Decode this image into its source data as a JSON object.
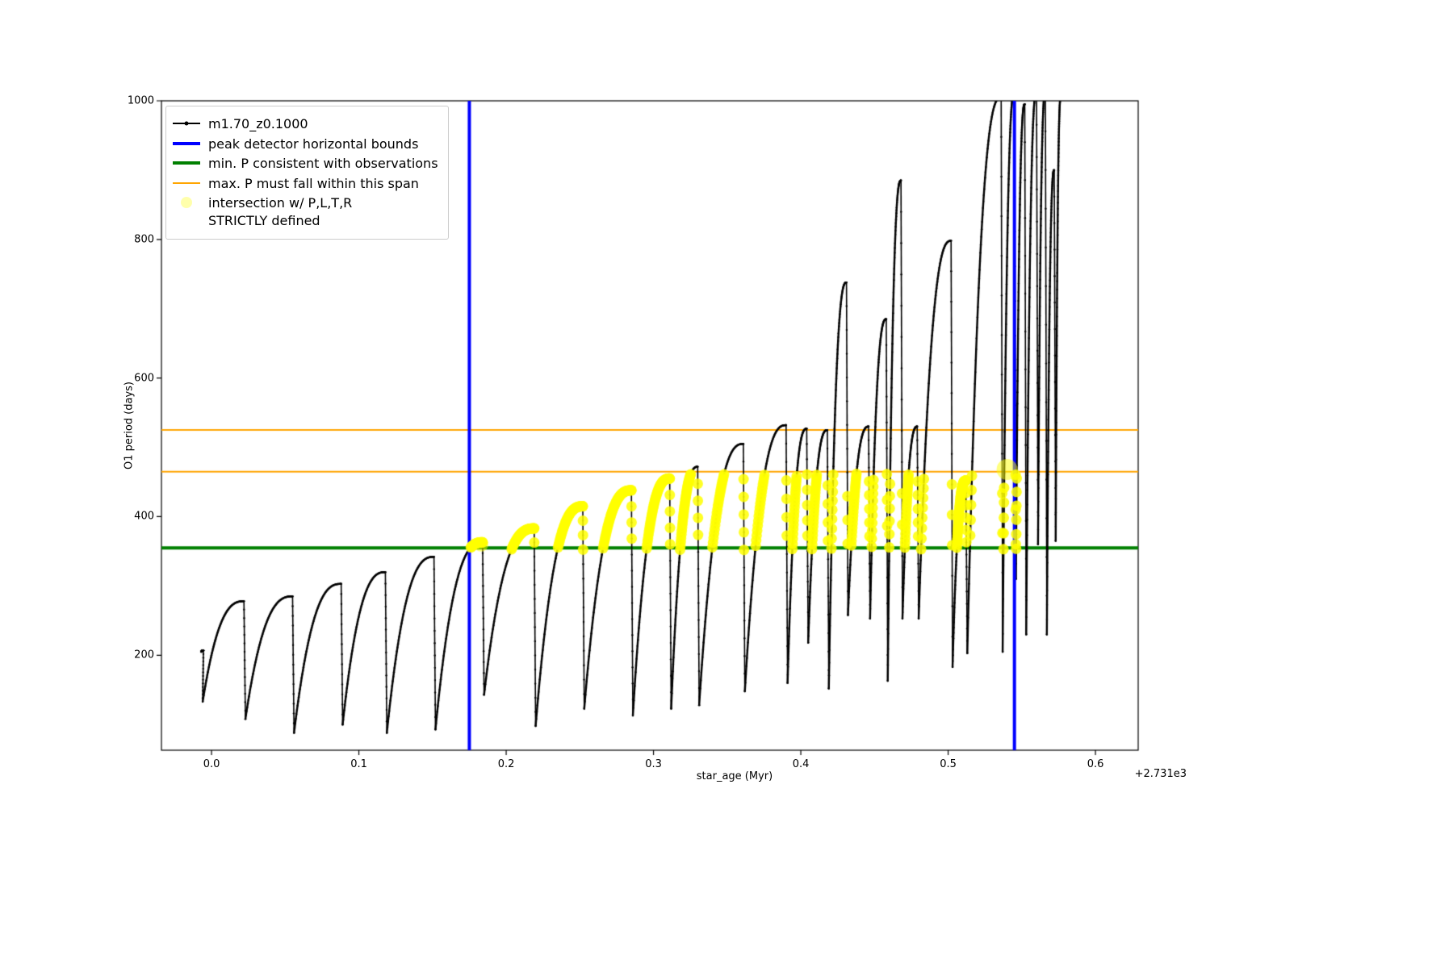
{
  "chart_data": {
    "type": "line",
    "title": "",
    "xlabel": "star_age (Myr)",
    "ylabel": "O1 period (days)",
    "x_axis_offset": "+2.731e3",
    "xlim": [
      -0.034,
      0.629
    ],
    "ylim": [
      63,
      1000
    ],
    "x_ticks": [
      0.0,
      0.1,
      0.2,
      0.3,
      0.4,
      0.5,
      0.6
    ],
    "x_tick_labels": [
      "0.0",
      "0.1",
      "0.2",
      "0.3",
      "0.4",
      "0.5",
      "0.6"
    ],
    "y_ticks": [
      200,
      400,
      600,
      800,
      1000
    ],
    "y_tick_labels": [
      "200",
      "400",
      "600",
      "800",
      "1000"
    ],
    "grid": false,
    "legend_position": "upper-left",
    "series": [
      {
        "name": "m1.70_z0.1000",
        "color": "#000000",
        "style": "line-dot",
        "arcs_comment": "each arc: [x_start, y_start, x_peak, y_peak]; curve rises steeply then flattens, then drops vertically to next arc start",
        "arcs": [
          [
            -0.007,
            205,
            -0.0055,
            207
          ],
          [
            -0.006,
            133,
            0.022,
            278
          ],
          [
            0.023,
            108,
            0.055,
            285
          ],
          [
            0.056,
            88,
            0.088,
            303
          ],
          [
            0.089,
            100,
            0.118,
            320
          ],
          [
            0.119,
            88,
            0.151,
            342
          ],
          [
            0.152,
            93,
            0.184,
            363
          ],
          [
            0.185,
            143,
            0.219,
            383
          ],
          [
            0.22,
            98,
            0.252,
            415
          ],
          [
            0.253,
            123,
            0.285,
            438
          ],
          [
            0.286,
            113,
            0.311,
            455
          ],
          [
            0.312,
            123,
            0.33,
            472
          ],
          [
            0.331,
            128,
            0.361,
            505
          ],
          [
            0.362,
            148,
            0.39,
            532
          ],
          [
            0.391,
            160,
            0.404,
            527
          ],
          [
            0.405,
            218,
            0.418,
            525
          ],
          [
            0.419,
            152,
            0.431,
            738
          ],
          [
            0.432,
            258,
            0.446,
            530
          ],
          [
            0.447,
            253,
            0.458,
            685
          ],
          [
            0.459,
            163,
            0.468,
            885
          ],
          [
            0.469,
            253,
            0.479,
            530
          ],
          [
            0.48,
            253,
            0.502,
            798
          ],
          [
            0.503,
            183,
            0.512,
            452
          ],
          [
            0.513,
            203,
            0.536,
            1005
          ],
          [
            0.537,
            205,
            0.545,
            1012
          ],
          [
            0.546,
            310,
            0.552,
            995
          ],
          [
            0.553,
            230,
            0.56,
            1012
          ],
          [
            0.561,
            360,
            0.566,
            1012
          ],
          [
            0.567,
            230,
            0.572,
            900
          ],
          [
            0.573,
            365,
            0.5765,
            1005
          ]
        ]
      }
    ],
    "vlines": {
      "label": "peak detector horizontal bounds",
      "color": "#0000ff",
      "width": 4,
      "x": [
        0.175,
        0.545
      ]
    },
    "hline_min": {
      "label": "min. P consistent with observations",
      "color": "#008000",
      "width": 4,
      "y": 355
    },
    "hlines_span": {
      "label": "max. P must fall within this span",
      "color": "#ffa500",
      "width": 2,
      "y": [
        465,
        525
      ]
    },
    "intersection": {
      "label": "intersection w/ P,L,T,R\nSTRICTLY defined",
      "color": "#ffff00",
      "x_range": [
        0.176,
        0.548
      ],
      "y_range": [
        352,
        462
      ],
      "extra_blobs": [
        [
          0.54,
          468,
          13
        ],
        [
          0.183,
          360,
          9
        ]
      ]
    }
  },
  "legend": {
    "entries": [
      {
        "label": "m1.70_z0.1000",
        "marker": "line-dot",
        "color": "#000000"
      },
      {
        "label": "peak detector horizontal bounds",
        "marker": "thick-line",
        "color": "#0000ff"
      },
      {
        "label": "min. P consistent with observations",
        "marker": "thick-line",
        "color": "#008000"
      },
      {
        "label": "max. P must fall within this span",
        "marker": "line",
        "color": "#ffa500"
      },
      {
        "label": "intersection w/ P,L,T,R\nSTRICTLY defined",
        "marker": "dot",
        "color": "#ffff66"
      }
    ]
  }
}
